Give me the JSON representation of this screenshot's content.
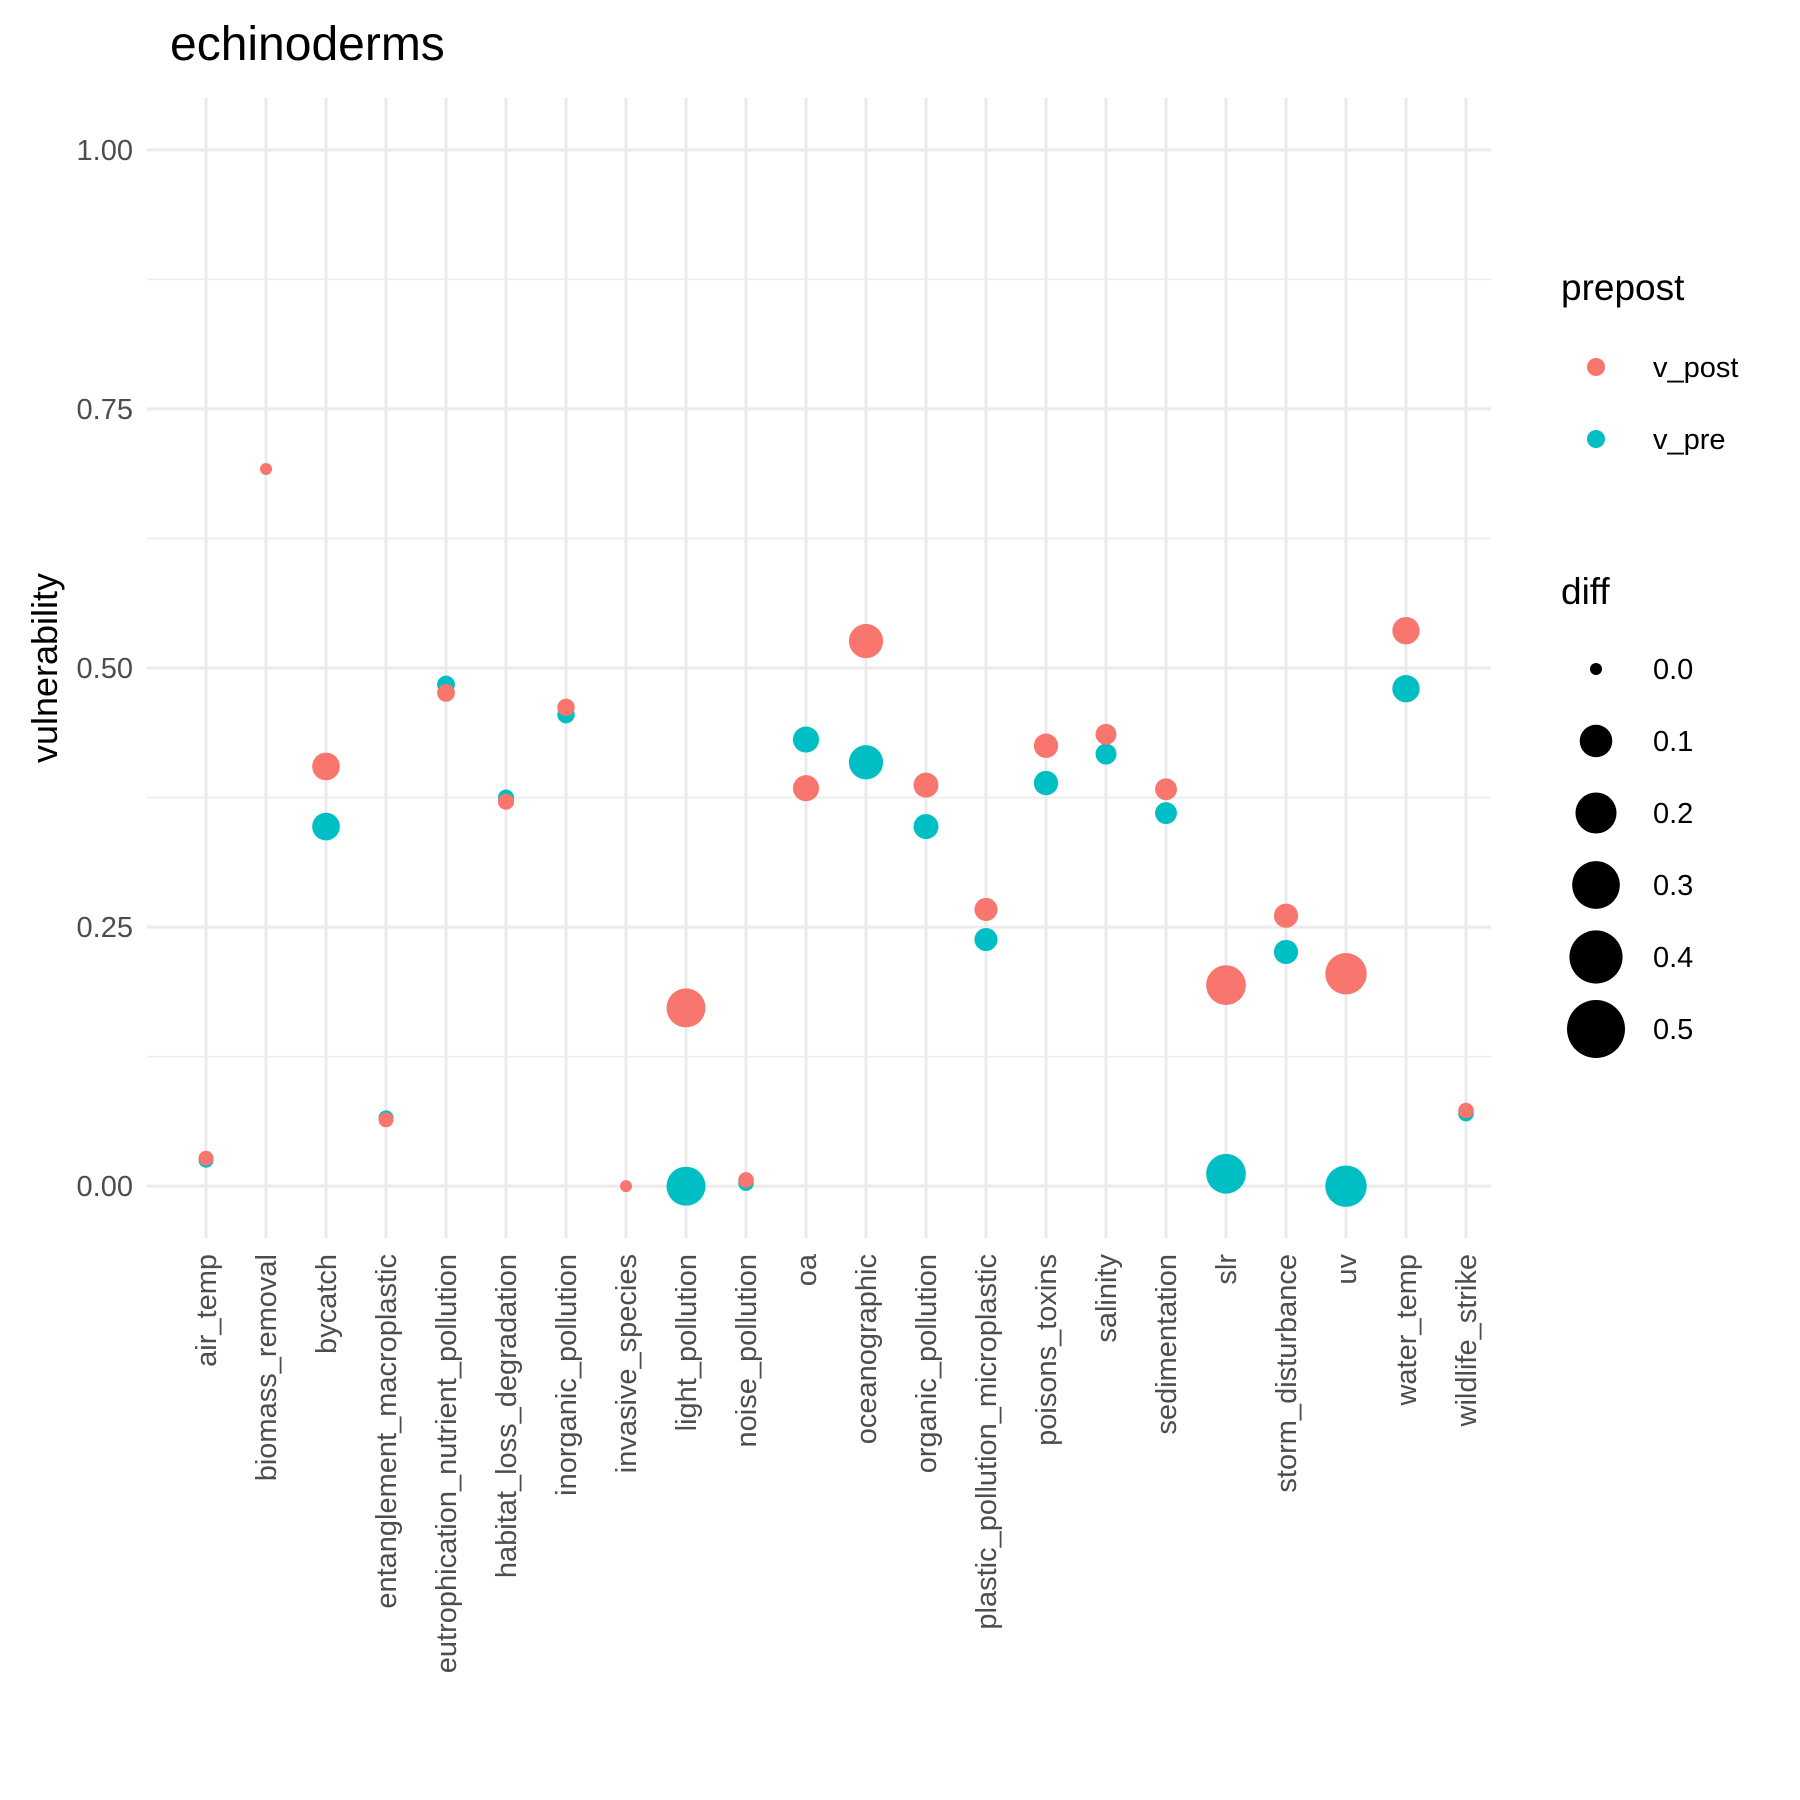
{
  "chart_data": {
    "type": "scatter",
    "title": "echinoderms",
    "xlabel": "",
    "ylabel": "vulnerability",
    "ylim": [
      -0.05,
      1.05
    ],
    "yticks": [
      "0.00",
      "0.25",
      "0.50",
      "0.75",
      "1.00"
    ],
    "grid": true,
    "legend_position": "right",
    "categories": [
      "air_temp",
      "biomass_removal",
      "bycatch",
      "entanglement_macroplastic",
      "eutrophication_nutrient_pollution",
      "habitat_loss_degradation",
      "inorganic_pollution",
      "invasive_species",
      "light_pollution",
      "noise_pollution",
      "oa",
      "oceanographic",
      "organic_pollution",
      "plastic_pollution_microplastic",
      "poisons_toxins",
      "salinity",
      "sedimentation",
      "slr",
      "storm_disturbance",
      "uv",
      "water_temp",
      "wildlife_strike"
    ],
    "series": [
      {
        "name": "v_pre",
        "color": "#00BFC4",
        "values": [
          0.025,
          null,
          0.347,
          0.066,
          0.484,
          0.375,
          0.455,
          null,
          0.0,
          0.003,
          0.431,
          0.409,
          0.347,
          0.238,
          0.389,
          0.417,
          0.36,
          0.012,
          0.226,
          0.0,
          0.48,
          0.07
        ]
      },
      {
        "name": "v_post",
        "color": "#F8766D",
        "values": [
          0.027,
          0.692,
          0.405,
          0.064,
          0.476,
          0.371,
          0.462,
          0.0,
          0.172,
          0.006,
          0.384,
          0.526,
          0.387,
          0.267,
          0.425,
          0.436,
          0.383,
          0.194,
          0.261,
          0.205,
          0.536,
          0.073
        ]
      }
    ],
    "diff": [
      0.002,
      0.0,
      0.058,
      0.002,
      0.008,
      0.004,
      0.007,
      0.0,
      0.172,
      0.003,
      0.047,
      0.117,
      0.04,
      0.029,
      0.036,
      0.019,
      0.023,
      0.182,
      0.035,
      0.205,
      0.056,
      0.003
    ],
    "legend": {
      "color_title": "prepost",
      "color_entries": [
        "v_post",
        "v_pre"
      ],
      "size_title": "diff",
      "size_entries": [
        "0.0",
        "0.1",
        "0.2",
        "0.3",
        "0.4",
        "0.5"
      ]
    }
  }
}
